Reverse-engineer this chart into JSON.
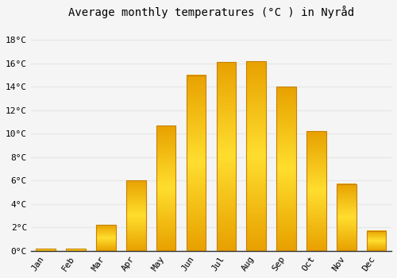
{
  "title": "Average monthly temperatures (°C ) in Nyråd",
  "months": [
    "Jan",
    "Feb",
    "Mar",
    "Apr",
    "May",
    "Jun",
    "Jul",
    "Aug",
    "Sep",
    "Oct",
    "Nov",
    "Dec"
  ],
  "values": [
    0.2,
    0.2,
    2.2,
    6.0,
    10.7,
    15.0,
    16.1,
    16.2,
    14.0,
    10.2,
    5.7,
    1.7
  ],
  "bar_color_center": "#FFD000",
  "bar_color_edge": "#F0A000",
  "background_color": "#f5f5f5",
  "grid_color": "#e8e8e8",
  "ytick_labels": [
    "0°C",
    "2°C",
    "4°C",
    "6°C",
    "8°C",
    "10°C",
    "12°C",
    "14°C",
    "16°C",
    "18°C"
  ],
  "ytick_values": [
    0,
    2,
    4,
    6,
    8,
    10,
    12,
    14,
    16,
    18
  ],
  "ylim": [
    0,
    19.5
  ],
  "title_fontsize": 10,
  "tick_fontsize": 8,
  "font_family": "monospace",
  "bar_width": 0.65
}
